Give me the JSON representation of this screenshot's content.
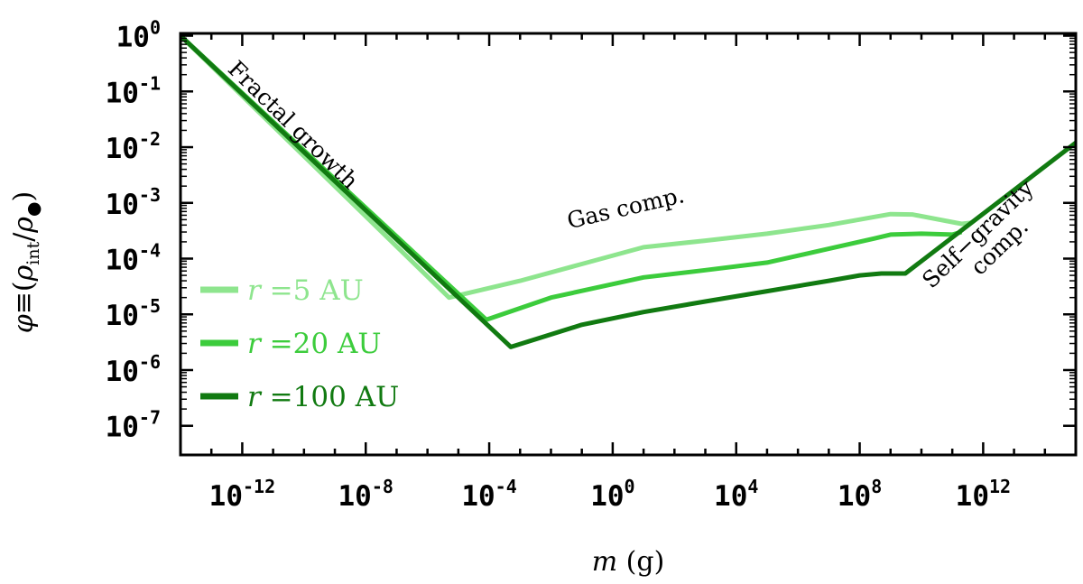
{
  "chart_data": {
    "type": "line",
    "xlabel": {
      "var": "m",
      "unit": "(g)"
    },
    "ylabel": {
      "lhs": "φ",
      "op": "≡",
      "open": "(",
      "num": "ρ",
      "num_sub": "int",
      "slash": "/",
      "den": "ρ",
      "den_sub": "●",
      "close": ")"
    },
    "x_scale": "log",
    "y_scale": "log",
    "xlim": [
      1e-14,
      1000000000000000.0
    ],
    "ylim": [
      3e-08,
      1.1
    ],
    "x_ticks": [
      {
        "value": 1e-12,
        "base": "10",
        "exp": "-12"
      },
      {
        "value": 1e-08,
        "base": "10",
        "exp": "-8"
      },
      {
        "value": 0.0001,
        "base": "10",
        "exp": "-4"
      },
      {
        "value": 1,
        "base": "10",
        "exp": "0"
      },
      {
        "value": 10000.0,
        "base": "10",
        "exp": "4"
      },
      {
        "value": 100000000.0,
        "base": "10",
        "exp": "8"
      },
      {
        "value": 1000000000000.0,
        "base": "10",
        "exp": "12"
      }
    ],
    "y_ticks": [
      {
        "value": 1,
        "base": "10",
        "exp": "0"
      },
      {
        "value": 0.1,
        "base": "10",
        "exp": "-1"
      },
      {
        "value": 0.01,
        "base": "10",
        "exp": "-2"
      },
      {
        "value": 0.001,
        "base": "10",
        "exp": "-3"
      },
      {
        "value": 0.0001,
        "base": "10",
        "exp": "-4"
      },
      {
        "value": 1e-05,
        "base": "10",
        "exp": "-5"
      },
      {
        "value": 1e-06,
        "base": "10",
        "exp": "-6"
      },
      {
        "value": 1e-07,
        "base": "10",
        "exp": "-7"
      }
    ],
    "grid": false,
    "legend_position": "left",
    "series": [
      {
        "name": {
          "var": "r",
          "eq": "=",
          "value": "5",
          "unit": "AU"
        },
        "color": "#8ee58e",
        "x": [
          1e-14,
          5e-06,
          0.001,
          0.1,
          10,
          1000.0,
          100000.0,
          10000000.0,
          300000000.0,
          1000000000.0,
          5000000000.0,
          200000000000.0,
          400000000000.0
        ],
        "y": [
          1.0,
          2e-05,
          4e-05,
          8e-05,
          0.00016,
          0.00021,
          0.00028,
          0.0004,
          0.00056,
          0.00063,
          0.00062,
          0.00042,
          0.00044
        ]
      },
      {
        "name": {
          "var": "r",
          "eq": "=",
          "value": "20",
          "unit": "AU"
        },
        "color": "#3ccc3c",
        "x": [
          1e-14,
          8e-05,
          0.01,
          10,
          1000.0,
          100000.0,
          10000000.0,
          300000000.0,
          1000000000.0,
          10000000000.0,
          100000000000.0,
          200000000000.0
        ],
        "y": [
          1.0,
          8e-06,
          2e-05,
          4.6e-05,
          6.2e-05,
          8.5e-05,
          0.00015,
          0.00023,
          0.00027,
          0.00028,
          0.00027,
          0.0003
        ]
      },
      {
        "name": {
          "var": "r",
          "eq": "=",
          "value": "100",
          "unit": "AU"
        },
        "color": "#117a11",
        "x": [
          1e-14,
          0.0005,
          0.1,
          10,
          1000.0,
          100000.0,
          10000000.0,
          100000000.0,
          500000000.0,
          3000000000.0,
          1000000000000000.0
        ],
        "y": [
          1.0,
          2.6e-06,
          6.5e-06,
          1.1e-05,
          1.7e-05,
          2.6e-05,
          4e-05,
          5e-05,
          5.4e-05,
          5.4e-05,
          0.012
        ]
      }
    ],
    "annotations": [
      {
        "text": "Fractal growth",
        "x": 3e-11,
        "y": 0.02,
        "angle": 44.5
      },
      {
        "text": "Gas comp.",
        "x": 3.0,
        "y": 0.0006,
        "angle": -13
      },
      {
        "text": "Self−gravity",
        "x": 1000000000000.0,
        "y": 0.00022,
        "angle": -44
      },
      {
        "text": "comp.",
        "x": 5000000000000.0,
        "y": 0.00013,
        "angle": -44
      }
    ]
  }
}
